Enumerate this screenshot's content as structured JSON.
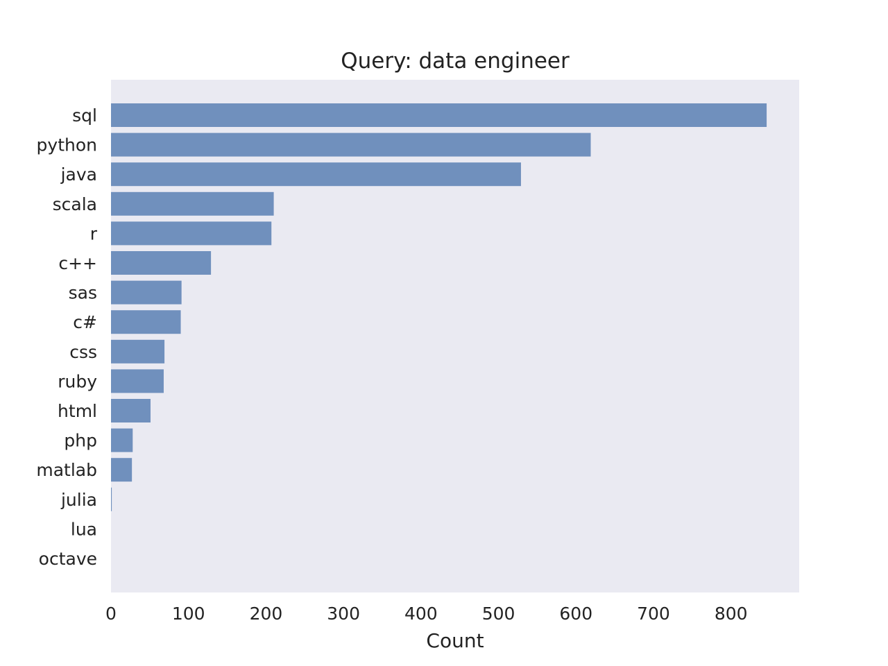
{
  "chart_data": {
    "type": "bar",
    "orientation": "horizontal",
    "title": "Query: data engineer",
    "xlabel": "Count",
    "ylabel": "",
    "categories": [
      "sql",
      "python",
      "java",
      "scala",
      "r",
      "c++",
      "sas",
      "c#",
      "css",
      "ruby",
      "html",
      "php",
      "matlab",
      "julia",
      "lua",
      "octave"
    ],
    "values": [
      846,
      619,
      529,
      210,
      207,
      129,
      91,
      90,
      69,
      68,
      51,
      28,
      27,
      1,
      0,
      0
    ],
    "xlim": [
      0,
      888
    ],
    "xticks": [
      0,
      100,
      200,
      300,
      400,
      500,
      600,
      700,
      800
    ],
    "grid": false,
    "colors": {
      "bar": "#7090bd",
      "background": "#eaeaf2"
    }
  }
}
